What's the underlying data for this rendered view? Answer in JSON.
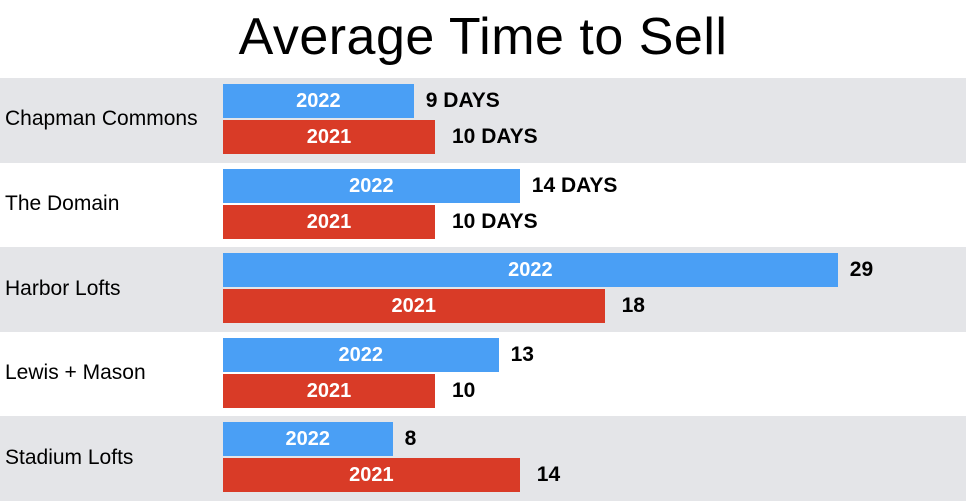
{
  "chart_data": {
    "type": "bar",
    "orientation": "horizontal",
    "title": "Average Time to Sell",
    "categories": [
      "Chapman Commons",
      "The Domain",
      "Harbor Lofts",
      "Lewis + Mason",
      "Stadium Lofts"
    ],
    "series": [
      {
        "name": "2022",
        "values": [
          9,
          14,
          29,
          13,
          8
        ],
        "labels": [
          "9 DAYS",
          "14 DAYS",
          "29",
          "13",
          "8"
        ],
        "color": "#4a9ff5"
      },
      {
        "name": "2021",
        "values": [
          10,
          10,
          18,
          10,
          14
        ],
        "labels": [
          "10 DAYS",
          "10 DAYS",
          "18",
          "10",
          "14"
        ],
        "color": "#d93b27"
      }
    ],
    "xlim": [
      0,
      29
    ],
    "grid": false,
    "legend": "none",
    "band_colors": [
      "#e4e5e8",
      "#ffffff"
    ]
  }
}
